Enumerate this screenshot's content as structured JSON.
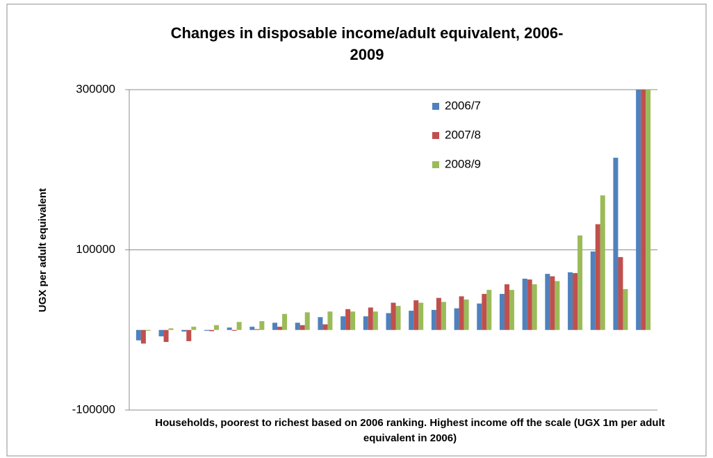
{
  "chart_data": {
    "type": "bar",
    "title": "Changes in disposable income/adult equivalent, 2006-2009",
    "y_label": "UGX per adult equivalent",
    "x_label": "Households, poorest to richest based on 2006 ranking. Highest income off the scale (UGX 1m per  adult equivalent in 2006)",
    "ylim": [
      -100000,
      300000
    ],
    "yticks": [
      -100000,
      100000,
      300000
    ],
    "grid": true,
    "legend": "top-right",
    "series": [
      {
        "name": "2006/7",
        "color": "#4f81bd",
        "values": [
          -13000,
          -8000,
          -2000,
          -1000,
          3000,
          4000,
          9000,
          9000,
          16000,
          17000,
          17000,
          21000,
          24000,
          25000,
          27000,
          33000,
          45000,
          64000,
          70000,
          72000,
          98000,
          215000,
          300000
        ]
      },
      {
        "name": "2007/8",
        "color": "#c0504d",
        "values": [
          -17000,
          -15000,
          -14000,
          -1500,
          -1000,
          1000,
          4000,
          6000,
          7000,
          26000,
          28000,
          34000,
          37000,
          40000,
          42000,
          45000,
          57000,
          63000,
          67000,
          71000,
          132000,
          91000,
          300000
        ]
      },
      {
        "name": "2008/9",
        "color": "#9bbb59",
        "values": [
          -1000,
          2000,
          4000,
          6000,
          10000,
          11000,
          20000,
          22000,
          23000,
          23000,
          23000,
          30000,
          34000,
          35000,
          38000,
          50000,
          50000,
          57000,
          61000,
          118000,
          168000,
          51000,
          300000
        ]
      }
    ]
  }
}
